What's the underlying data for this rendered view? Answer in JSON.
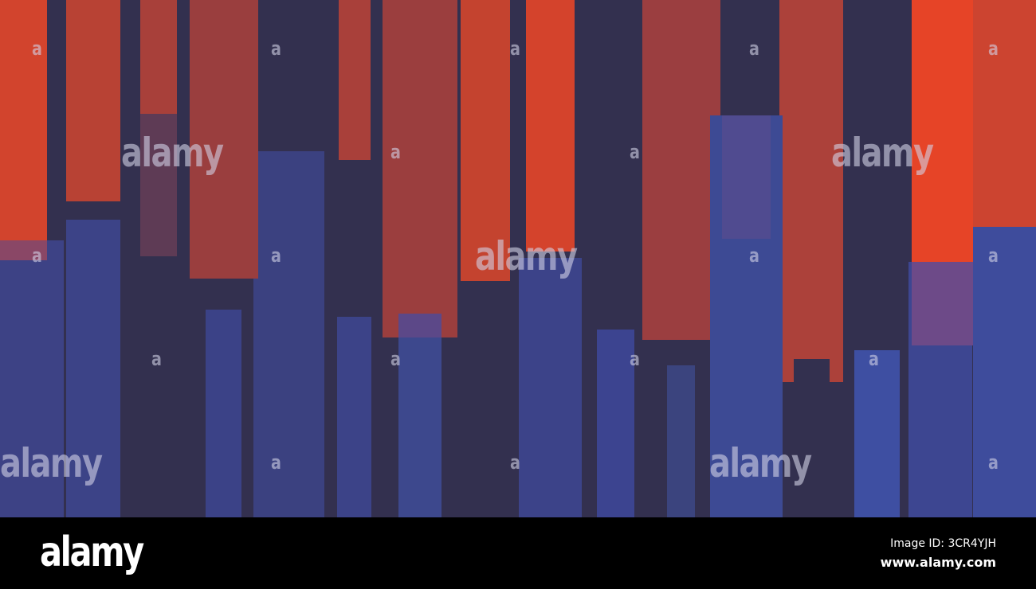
{
  "watermark": {
    "word": "alamy",
    "letter": "a"
  },
  "footer": {
    "logo": "alamy",
    "image_id": "Image ID: 3CR4YJH",
    "url": "www.alamy.com"
  },
  "colors": {
    "background": "#33304f",
    "red": "#d4432c",
    "blue": "#3d4691"
  }
}
